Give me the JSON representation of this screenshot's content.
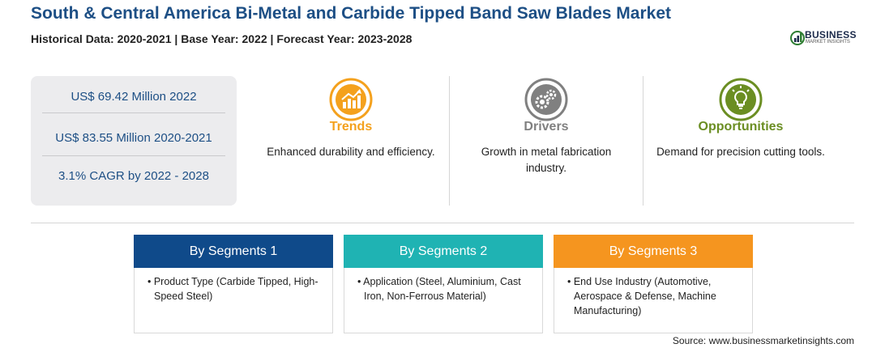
{
  "header": {
    "title": "South & Central America Bi-Metal and Carbide Tipped Band Saw Blades Market",
    "subtitle": "Historical Data: 2020-2021 | Base Year: 2022 | Forecast Year: 2023-2028"
  },
  "logo": {
    "line1": "BUSINESS",
    "line2": "MARKET INSIGHTS"
  },
  "stats": [
    "US$ 69.42 Million 2022",
    "US$ 83.55 Million 2020-2021",
    "3.1% CAGR by 2022 - 2028"
  ],
  "highlights": [
    {
      "heading": "Trends",
      "text": "Enhanced durability and efficiency.",
      "color": "#f4a11d",
      "icon": "trend-chart-icon"
    },
    {
      "heading": "Drivers",
      "text": "Growth in metal fabrication industry.",
      "color": "#808080",
      "icon": "gears-icon"
    },
    {
      "heading": "Opportunities",
      "text": "Demand for precision cutting tools.",
      "color": "#6b8e23",
      "icon": "lightbulb-icon"
    }
  ],
  "segments": [
    {
      "title": "By Segments 1",
      "text": "• Product Type (Carbide Tipped, High-Speed Steel)",
      "color": "#0f4a8a"
    },
    {
      "title": "By Segments 2",
      "text": "• Application (Steel, Aluminium, Cast Iron, Non-Ferrous Material)",
      "color": "#1fb3b3"
    },
    {
      "title": "By Segments 3",
      "text": "• End Use Industry (Automotive, Aerospace & Defense, Machine Manufacturing)",
      "color": "#f5951f"
    }
  ],
  "source": "Source: www.businessmarketinsights.com"
}
